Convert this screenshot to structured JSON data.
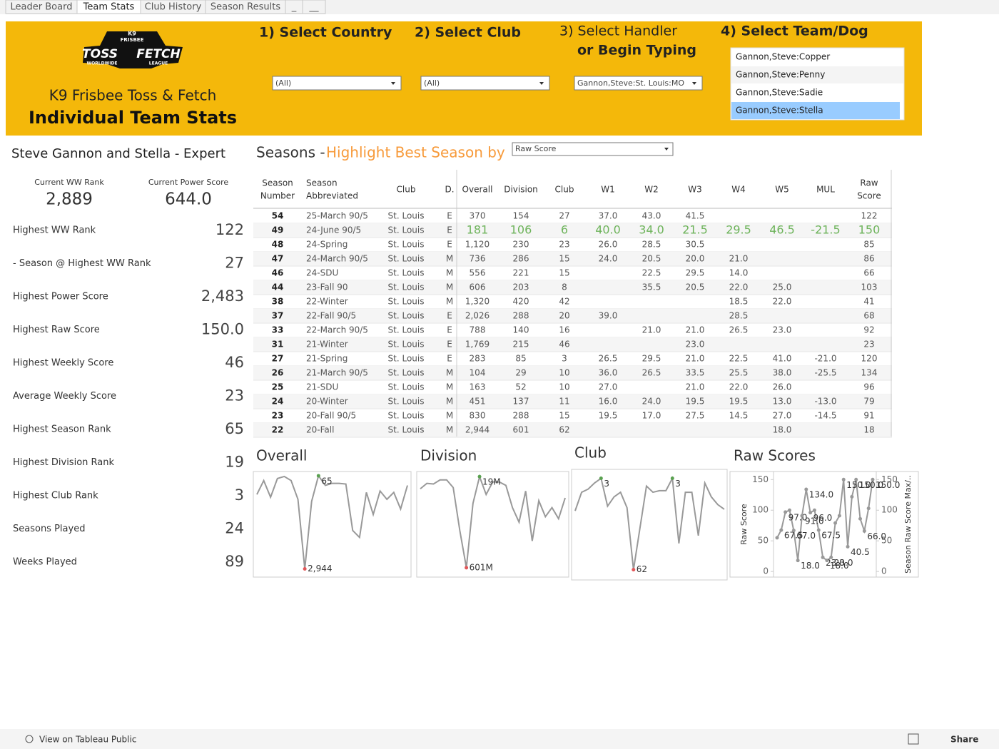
{
  "tabs": [
    "Leader Board",
    "Team Stats",
    "Club History",
    "Season Results",
    "_",
    "__"
  ],
  "active_tab": 1,
  "header": {
    "logo": [
      "K9",
      "FRISBEE",
      "TOSS",
      "FETCH",
      "WORLDWIDE",
      "LEAGUE"
    ],
    "subtitle": "K9 Frisbee Toss & Fetch",
    "title": "Individual Team Stats",
    "color": "#f4b80a"
  },
  "filters": [
    {
      "label": [
        "1) Select Country"
      ],
      "value": "(All)"
    },
    {
      "label": [
        "2) Select Club"
      ],
      "value": "(All)"
    },
    {
      "label": [
        "3) Select Handler",
        "or Begin Typing"
      ],
      "value": "Gannon,Steve:St. Louis:MO"
    },
    {
      "label": [
        "4) Select Team/Dog"
      ],
      "options": [
        "Gannon,Steve:Copper",
        "Gannon,Steve:Penny",
        "Gannon,Steve:Sadie",
        "Gannon,Steve:Stella"
      ],
      "selected": 3
    }
  ],
  "team": {
    "title": "Steve Gannon and Stella - Expert",
    "kpis": [
      {
        "label": "Current WW Rank",
        "value": "2,889"
      },
      {
        "label": "Current Power Score",
        "value": "644.0"
      }
    ],
    "stats": [
      {
        "label": "Highest WW Rank",
        "value": "122"
      },
      {
        "label": " - Season @ Highest WW Rank",
        "value": "27"
      },
      {
        "label": "Highest Power Score",
        "value": "2,483"
      },
      {
        "label": "Highest Raw Score",
        "value": "150.0"
      },
      {
        "label": "Highest Weekly Score",
        "value": "46"
      },
      {
        "label": "Average Weekly Score",
        "value": "23"
      },
      {
        "label": "Highest Season Rank",
        "value": "65"
      },
      {
        "label": "Highest Division Rank",
        "value": "19"
      },
      {
        "label": "Highest Club Rank",
        "value": "3"
      },
      {
        "label": "Seasons Played",
        "value": "24"
      },
      {
        "label": "Weeks Played",
        "value": "89"
      }
    ]
  },
  "seasons": {
    "title": "Seasons -",
    "highlight_label": "Highlight Best Season by",
    "highlight_by": "Raw Score",
    "highlight_row": 1,
    "highlight_color": "#6db35a",
    "columns": [
      [
        "Season",
        "Number"
      ],
      [
        "Season",
        "Abbreviated"
      ],
      [
        "Club"
      ],
      [
        "D."
      ],
      [
        "Overall"
      ],
      [
        "Division"
      ],
      [
        "Club"
      ],
      [
        "W1"
      ],
      [
        "W2"
      ],
      [
        "W3"
      ],
      [
        "W4"
      ],
      [
        "W5"
      ],
      [
        "MUL"
      ],
      [
        "Raw",
        "Score"
      ]
    ],
    "rows": [
      [
        "54",
        "25-March 90/5",
        "St. Louis",
        "E",
        "370",
        "154",
        "27",
        "37.0",
        "43.0",
        "41.5",
        null,
        null,
        null,
        "122"
      ],
      [
        "49",
        "24-June 90/5",
        "St. Louis",
        "E",
        "181",
        "106",
        "6",
        "40.0",
        "34.0",
        "21.5",
        "29.5",
        "46.5",
        "-21.5",
        "150"
      ],
      [
        "48",
        "24-Spring",
        "St. Louis",
        "E",
        "1,120",
        "230",
        "23",
        "26.0",
        "28.5",
        "30.5",
        null,
        null,
        null,
        "85"
      ],
      [
        "47",
        "24-March 90/5",
        "St. Louis",
        "M",
        "736",
        "286",
        "15",
        "24.0",
        "20.5",
        "20.0",
        "21.0",
        null,
        null,
        "86"
      ],
      [
        "46",
        "24-SDU",
        "St. Louis",
        "M",
        "556",
        "221",
        "15",
        null,
        "22.5",
        "29.5",
        "14.0",
        null,
        null,
        "66"
      ],
      [
        "44",
        "23-Fall 90",
        "St. Louis",
        "M",
        "606",
        "203",
        "8",
        null,
        "35.5",
        "20.5",
        "22.0",
        "25.0",
        null,
        "103"
      ],
      [
        "38",
        "22-Winter",
        "St. Louis",
        "M",
        "1,320",
        "420",
        "42",
        null,
        null,
        null,
        "18.5",
        "22.0",
        null,
        "41"
      ],
      [
        "37",
        "22-Fall 90/5",
        "St. Louis",
        "E",
        "2,026",
        "288",
        "20",
        "39.0",
        null,
        null,
        "28.5",
        null,
        null,
        "68"
      ],
      [
        "33",
        "22-March 90/5",
        "St. Louis",
        "E",
        "788",
        "140",
        "16",
        null,
        "21.0",
        "21.0",
        "26.5",
        "23.0",
        null,
        "92"
      ],
      [
        "31",
        "21-Winter",
        "St. Louis",
        "E",
        "1,769",
        "215",
        "46",
        null,
        null,
        "23.0",
        null,
        null,
        null,
        "23"
      ],
      [
        "27",
        "21-Spring",
        "St. Louis",
        "E",
        "283",
        "85",
        "3",
        "26.5",
        "29.5",
        "21.0",
        "22.5",
        "41.0",
        "-21.0",
        "120"
      ],
      [
        "26",
        "21-March 90/5",
        "St. Louis",
        "M",
        "104",
        "29",
        "10",
        "36.0",
        "26.5",
        "33.5",
        "25.5",
        "38.0",
        "-25.5",
        "134"
      ],
      [
        "25",
        "21-SDU",
        "St. Louis",
        "M",
        "163",
        "52",
        "10",
        "27.0",
        null,
        "21.0",
        "22.0",
        "26.0",
        null,
        "96"
      ],
      [
        "24",
        "20-Winter",
        "St. Louis",
        "M",
        "451",
        "137",
        "11",
        "16.0",
        "24.0",
        "19.5",
        "19.5",
        "13.0",
        "-13.0",
        "79"
      ],
      [
        "23",
        "20-Fall 90/5",
        "St. Louis",
        "M",
        "830",
        "288",
        "15",
        "19.5",
        "17.0",
        "27.5",
        "14.5",
        "27.0",
        "-14.5",
        "91"
      ],
      [
        "22",
        "20-Fall",
        "St. Louis",
        "M",
        "2,944",
        "601",
        "62",
        null,
        null,
        null,
        null,
        "18.0",
        null,
        "18"
      ]
    ]
  },
  "charts": [
    {
      "type": "line",
      "title": "Overall",
      "color": "#999999",
      "best_color": "#59a14f",
      "worst_color": "#e15759",
      "reversed": true,
      "ylim": [
        0,
        3000
      ],
      "values": [
        643,
        214,
        729,
        150,
        86,
        214,
        793,
        2944,
        857,
        65,
        364,
        300,
        300,
        321,
        1757,
        1971,
        579,
        1264,
        536,
        793,
        579,
        1093,
        364
      ],
      "value_labels": [
        null,
        null,
        null,
        null,
        null,
        null,
        null,
        "2,944",
        null,
        "65",
        null,
        null,
        null,
        null,
        null,
        null,
        null,
        null,
        null,
        null,
        null,
        null,
        null
      ]
    },
    {
      "type": "line",
      "title": "Division",
      "color": "#999999",
      "best_color": "#59a14f",
      "worst_color": "#e15759",
      "reversed": true,
      "ylim": [
        0,
        620
      ],
      "values": [
        97,
        62,
        66,
        40,
        40,
        89,
        363,
        601,
        190,
        19,
        133,
        53,
        53,
        75,
        217,
        310,
        111,
        430,
        173,
        275,
        217,
        288,
        155
      ],
      "value_labels": [
        null,
        null,
        null,
        null,
        null,
        null,
        null,
        "601M",
        null,
        "19M",
        null,
        null,
        null,
        null,
        null,
        null,
        null,
        null,
        null,
        null,
        null,
        null,
        null
      ]
    },
    {
      "type": "line",
      "title": "Club",
      "color": "#999999",
      "best_color": "#59a14f",
      "worst_color": "#e15759",
      "reversed": true,
      "ylim": [
        0,
        64
      ],
      "values": [
        24,
        12,
        10,
        6,
        3,
        21,
        15,
        12,
        22,
        62,
        35,
        8,
        12,
        11,
        11,
        3,
        45,
        12,
        12,
        40,
        6,
        15,
        20,
        23
      ],
      "value_labels": [
        null,
        null,
        null,
        null,
        "3",
        null,
        null,
        null,
        null,
        "62",
        null,
        null,
        null,
        null,
        null,
        "3",
        null,
        null,
        null,
        null,
        null,
        null,
        null,
        null
      ]
    },
    {
      "type": "line",
      "title": "Raw Scores",
      "color": "#999999",
      "y_label": "Raw Score",
      "y2_label": "Season Raw Score Max/..",
      "ylim": [
        -8,
        162
      ],
      "yticks": [
        0,
        50,
        100,
        150
      ],
      "y2lim": [
        -8,
        162
      ],
      "y2ticks": [
        0,
        50,
        100,
        150
      ],
      "values": [
        55,
        67.5,
        97,
        100,
        67,
        18,
        91,
        134,
        96,
        100,
        67.5,
        23,
        18,
        23,
        79,
        91,
        150,
        40.5,
        122,
        150,
        86,
        66,
        103,
        150
      ],
      "value_labels": [
        null,
        "67.5",
        "97.0",
        null,
        "67.0",
        "18.0",
        "91.0",
        "134.0",
        "96.0",
        null,
        "67.5",
        "23.0",
        "18.0",
        "23.0",
        null,
        null,
        "150.0",
        "40.5",
        null,
        "150.0",
        null,
        "66.0",
        null,
        "150.0"
      ]
    }
  ],
  "footer": {
    "link": "View on Tableau Public",
    "share": "Share"
  }
}
